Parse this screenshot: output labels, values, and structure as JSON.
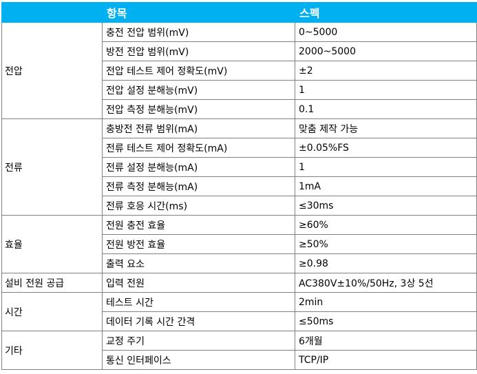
{
  "header": {
    "category": "",
    "item": "항목",
    "spec": "스펙"
  },
  "groups": [
    {
      "name": "전압",
      "rows": [
        {
          "item": "충전 전압 범위(mV)",
          "spec": "0~5000"
        },
        {
          "item": "방전 전압 범위(mV)",
          "spec": "2000~5000"
        },
        {
          "item": "전압 테스트 제어 정확도(mV)",
          "spec": "±2"
        },
        {
          "item": "전압 설정 분해능(mV)",
          "spec": "1"
        },
        {
          "item": "전압 측정 분해능(mV)",
          "spec": "0.1"
        }
      ]
    },
    {
      "name": "전류",
      "rows": [
        {
          "item": "충방전 전류 범위(mA)",
          "spec": "맞춤 제작 가능"
        },
        {
          "item": "전류 테스트 제어 정확도(mA)",
          "spec": "±0.05%FS"
        },
        {
          "item": "전류 설정 분해능(mA)",
          "spec": "1"
        },
        {
          "item": "전류 측정 분해능(mA)",
          "spec": "1mA"
        },
        {
          "item": "전류 호응 시간(ms)",
          "spec": "≤30ms"
        }
      ]
    },
    {
      "name": "효율",
      "rows": [
        {
          "item": "전원 충전 효율",
          "spec": "≥60%"
        },
        {
          "item": "전원 방전 효율",
          "spec": "≥50%"
        },
        {
          "item": "출력 요소",
          "spec": "≥0.98"
        }
      ]
    },
    {
      "name": "설비 전원 공급",
      "rows": [
        {
          "item": "입력 전원",
          "spec": "AC380V±10%/50Hz, 3상 5선"
        }
      ]
    },
    {
      "name": "시간",
      "rows": [
        {
          "item": "테스트 시간",
          "spec": "2min"
        },
        {
          "item": "데이터 기록 시간 간격",
          "spec": "≤50ms"
        }
      ]
    },
    {
      "name": "기타",
      "rows": [
        {
          "item": "교정 주기",
          "spec": "6개월"
        },
        {
          "item": "통신 인터페이스",
          "spec": "TCP/IP"
        }
      ]
    }
  ]
}
